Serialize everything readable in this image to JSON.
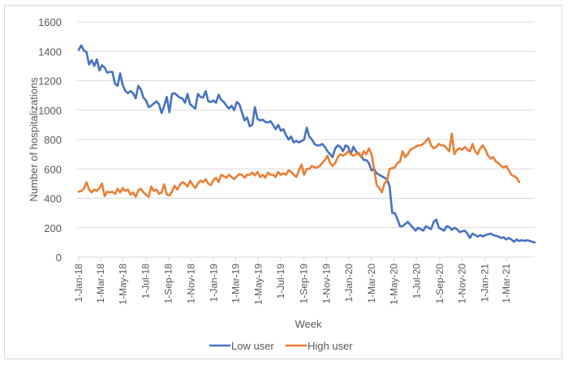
{
  "chart_data": {
    "type": "line",
    "title": "",
    "xlabel": "Week",
    "ylabel": "Number of hospitalizations",
    "ylim": [
      0,
      1600
    ],
    "yticks": [
      0,
      200,
      400,
      600,
      800,
      1000,
      1200,
      1400,
      1600
    ],
    "grid": true,
    "legend_position": "bottom",
    "x_start": "2018-01-01",
    "x_interval": "1 week",
    "xtick_labels": [
      "1-Jan-18",
      "1-Mar-18",
      "1-May-18",
      "1-Jul-18",
      "1-Sep-18",
      "1-Nov-18",
      "1-Jan-19",
      "1-Mar-19",
      "1-May-19",
      "1-Jul-19",
      "1-Sep-19",
      "1-Nov-19",
      "1-Jan-20",
      "1-Mar-20",
      "1-May-20",
      "1-Jul-20",
      "1-Sep-20",
      "1-Nov-20",
      "1-Jan-21",
      "1-Mar-21"
    ],
    "xtick_weeks": [
      0,
      8.4,
      17.1,
      25.9,
      34.6,
      43.3,
      52.1,
      60.6,
      69.3,
      78,
      86.9,
      95.6,
      104.3,
      113,
      121.7,
      130.4,
      139.3,
      148,
      156.7,
      165.1
    ],
    "series": [
      {
        "name": "Low user",
        "color": "#4472C4",
        "values": [
          1410,
          1440,
          1405,
          1395,
          1310,
          1340,
          1300,
          1345,
          1270,
          1305,
          1290,
          1255,
          1260,
          1260,
          1180,
          1165,
          1250,
          1170,
          1130,
          1115,
          1130,
          1115,
          1080,
          1165,
          1140,
          1085,
          1065,
          1020,
          1030,
          1045,
          1060,
          1040,
          980,
          1030,
          1090,
          985,
          1110,
          1115,
          1100,
          1085,
          1080,
          1050,
          1110,
          1040,
          1025,
          1010,
          1110,
          1090,
          1085,
          1130,
          1060,
          1055,
          1065,
          1050,
          1105,
          1070,
          1055,
          1030,
          1010,
          1030,
          1000,
          1055,
          1040,
          985,
          930,
          950,
          890,
          900,
          1020,
          940,
          930,
          935,
          920,
          915,
          925,
          900,
          870,
          900,
          860,
          870,
          830,
          800,
          820,
          780,
          790,
          780,
          790,
          800,
          880,
          820,
          800,
          770,
          760,
          760,
          770,
          750,
          720,
          700,
          680,
          740,
          760,
          750,
          720,
          760,
          750,
          700,
          750,
          720,
          700,
          690,
          660,
          660,
          640,
          590,
          600,
          570,
          560,
          550,
          540,
          530,
          480,
          300,
          300,
          260,
          210,
          210,
          225,
          240,
          220,
          200,
          180,
          200,
          190,
          180,
          210,
          200,
          190,
          240,
          255,
          200,
          190,
          180,
          210,
          205,
          185,
          200,
          190,
          170,
          175,
          180,
          160,
          130,
          160,
          150,
          140,
          150,
          140,
          150,
          155,
          160,
          150,
          145,
          140,
          130,
          135,
          120,
          130,
          120,
          105,
          120,
          110,
          115,
          110,
          115,
          110,
          105,
          100
        ]
      },
      {
        "name": "High user",
        "color": "#ED7D31",
        "values": [
          445,
          450,
          465,
          510,
          460,
          440,
          460,
          450,
          470,
          500,
          415,
          445,
          440,
          445,
          430,
          465,
          440,
          470,
          450,
          460,
          425,
          440,
          410,
          455,
          465,
          440,
          425,
          410,
          480,
          450,
          460,
          430,
          440,
          495,
          425,
          420,
          445,
          485,
          460,
          490,
          510,
          500,
          480,
          520,
          490,
          470,
          500,
          520,
          510,
          530,
          500,
          490,
          525,
          540,
          510,
          560,
          550,
          540,
          560,
          545,
          530,
          550,
          565,
          560,
          540,
          560,
          560,
          575,
          555,
          580,
          545,
          560,
          540,
          575,
          560,
          560,
          545,
          580,
          560,
          570,
          560,
          590,
          580,
          560,
          545,
          590,
          630,
          560,
          600,
          600,
          620,
          610,
          610,
          620,
          640,
          660,
          690,
          640,
          620,
          640,
          680,
          700,
          690,
          700,
          720,
          700,
          690,
          700,
          710,
          680,
          720,
          700,
          740,
          700,
          600,
          490,
          470,
          440,
          500,
          520,
          600,
          605,
          610,
          640,
          650,
          720,
          680,
          700,
          730,
          740,
          750,
          760,
          760,
          770,
          790,
          810,
          760,
          740,
          750,
          770,
          760,
          760,
          740,
          720,
          840,
          700,
          730,
          740,
          730,
          750,
          730,
          720,
          770,
          720,
          700,
          740,
          760,
          730,
          690,
          670,
          680,
          650,
          640,
          620,
          610,
          620,
          590,
          560,
          550,
          540,
          510
        ]
      }
    ]
  },
  "legend": {
    "items": [
      {
        "label": "Low user",
        "color": "#4472C4"
      },
      {
        "label": "High user",
        "color": "#ED7D31"
      }
    ]
  }
}
